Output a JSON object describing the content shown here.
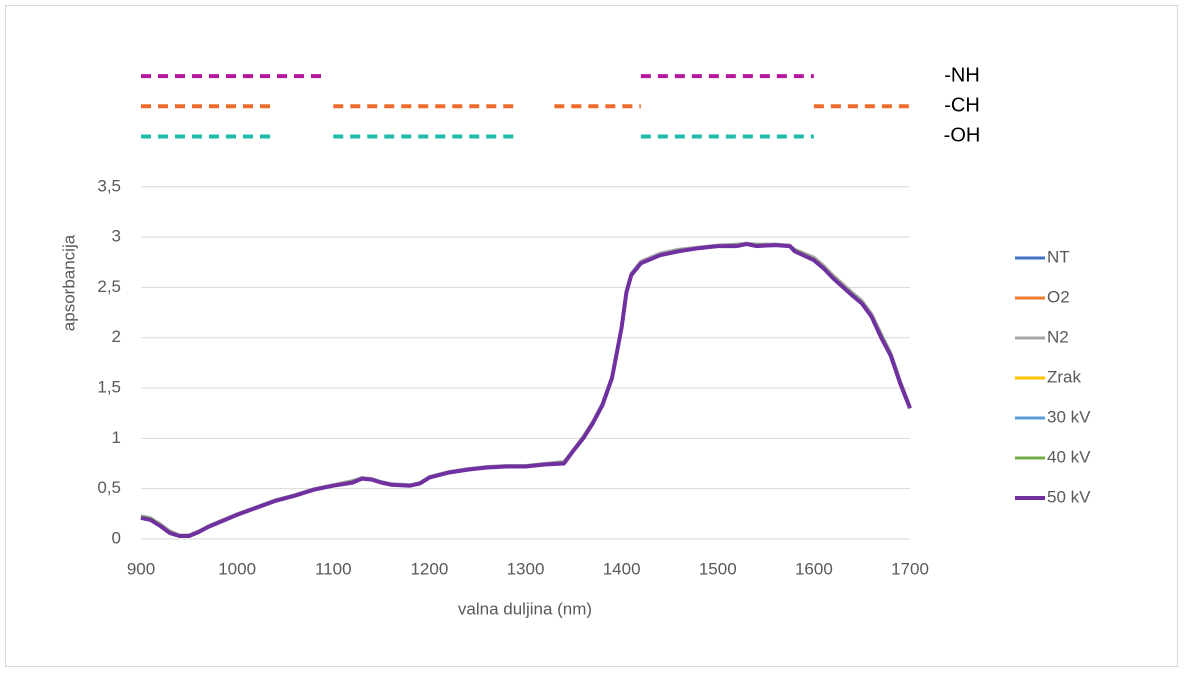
{
  "chart_data": {
    "type": "line",
    "xlabel": "valna duljina (nm)",
    "ylabel": "apsorbancija",
    "x": [
      900,
      910,
      920,
      930,
      940,
      950,
      960,
      970,
      980,
      1000,
      1020,
      1040,
      1060,
      1080,
      1100,
      1120,
      1130,
      1140,
      1150,
      1160,
      1180,
      1190,
      1200,
      1220,
      1240,
      1260,
      1280,
      1300,
      1320,
      1340,
      1350,
      1360,
      1370,
      1380,
      1390,
      1400,
      1405,
      1410,
      1420,
      1440,
      1460,
      1480,
      1500,
      1520,
      1530,
      1540,
      1560,
      1575,
      1580,
      1600,
      1610,
      1620,
      1640,
      1650,
      1660,
      1670,
      1680,
      1690,
      1700
    ],
    "series": [
      {
        "name": "NT",
        "color": "#4472c4",
        "values": [
          0.22,
          0.2,
          0.14,
          0.07,
          0.03,
          0.03,
          0.07,
          0.12,
          0.16,
          0.24,
          0.31,
          0.38,
          0.43,
          0.49,
          0.53,
          0.57,
          0.6,
          0.59,
          0.56,
          0.54,
          0.53,
          0.55,
          0.61,
          0.66,
          0.69,
          0.71,
          0.72,
          0.72,
          0.74,
          0.76,
          0.88,
          1.0,
          1.15,
          1.33,
          1.6,
          2.1,
          2.45,
          2.62,
          2.74,
          2.82,
          2.87,
          2.89,
          2.91,
          2.92,
          2.93,
          2.92,
          2.92,
          2.91,
          2.87,
          2.78,
          2.7,
          2.6,
          2.43,
          2.35,
          2.22,
          2.02,
          1.83,
          1.55,
          1.3
        ]
      },
      {
        "name": "O2",
        "color": "#ed7d31",
        "values": [
          0.22,
          0.2,
          0.14,
          0.07,
          0.03,
          0.03,
          0.07,
          0.12,
          0.16,
          0.24,
          0.31,
          0.38,
          0.43,
          0.49,
          0.53,
          0.57,
          0.6,
          0.59,
          0.56,
          0.54,
          0.53,
          0.55,
          0.61,
          0.66,
          0.69,
          0.71,
          0.72,
          0.72,
          0.74,
          0.76,
          0.88,
          1.0,
          1.15,
          1.33,
          1.6,
          2.1,
          2.45,
          2.62,
          2.74,
          2.82,
          2.87,
          2.89,
          2.91,
          2.92,
          2.93,
          2.92,
          2.92,
          2.91,
          2.87,
          2.78,
          2.7,
          2.6,
          2.43,
          2.35,
          2.22,
          2.02,
          1.83,
          1.55,
          1.3
        ]
      },
      {
        "name": "N2",
        "color": "#a5a5a5",
        "values": [
          0.23,
          0.21,
          0.15,
          0.08,
          0.04,
          0.04,
          0.08,
          0.13,
          0.17,
          0.25,
          0.32,
          0.39,
          0.44,
          0.5,
          0.54,
          0.58,
          0.61,
          0.6,
          0.57,
          0.55,
          0.54,
          0.56,
          0.62,
          0.67,
          0.7,
          0.72,
          0.73,
          0.73,
          0.75,
          0.77,
          0.89,
          1.02,
          1.17,
          1.35,
          1.62,
          2.12,
          2.47,
          2.64,
          2.76,
          2.84,
          2.88,
          2.9,
          2.92,
          2.93,
          2.94,
          2.93,
          2.93,
          2.92,
          2.88,
          2.8,
          2.72,
          2.62,
          2.45,
          2.37,
          2.24,
          2.04,
          1.85,
          1.57,
          1.32
        ]
      },
      {
        "name": "Zrak",
        "color": "#ffc000",
        "values": [
          0.22,
          0.2,
          0.14,
          0.07,
          0.03,
          0.03,
          0.07,
          0.12,
          0.16,
          0.24,
          0.31,
          0.38,
          0.43,
          0.49,
          0.53,
          0.57,
          0.6,
          0.59,
          0.56,
          0.54,
          0.53,
          0.55,
          0.61,
          0.66,
          0.69,
          0.71,
          0.72,
          0.72,
          0.74,
          0.76,
          0.88,
          1.0,
          1.15,
          1.33,
          1.6,
          2.1,
          2.45,
          2.62,
          2.74,
          2.82,
          2.87,
          2.89,
          2.91,
          2.92,
          2.93,
          2.92,
          2.92,
          2.91,
          2.87,
          2.78,
          2.7,
          2.6,
          2.43,
          2.35,
          2.22,
          2.02,
          1.83,
          1.55,
          1.3
        ]
      },
      {
        "name": "30 kV",
        "color": "#5b9bd5",
        "values": [
          0.22,
          0.2,
          0.14,
          0.07,
          0.03,
          0.03,
          0.07,
          0.12,
          0.16,
          0.24,
          0.31,
          0.38,
          0.43,
          0.49,
          0.53,
          0.57,
          0.6,
          0.59,
          0.56,
          0.54,
          0.53,
          0.55,
          0.61,
          0.66,
          0.69,
          0.71,
          0.72,
          0.72,
          0.74,
          0.76,
          0.88,
          1.0,
          1.15,
          1.33,
          1.6,
          2.1,
          2.45,
          2.62,
          2.74,
          2.82,
          2.87,
          2.89,
          2.91,
          2.92,
          2.93,
          2.92,
          2.92,
          2.91,
          2.87,
          2.78,
          2.7,
          2.6,
          2.43,
          2.35,
          2.22,
          2.02,
          1.83,
          1.55,
          1.3
        ]
      },
      {
        "name": "40 kV",
        "color": "#70ad47",
        "values": [
          0.22,
          0.2,
          0.14,
          0.07,
          0.03,
          0.03,
          0.07,
          0.12,
          0.16,
          0.24,
          0.31,
          0.38,
          0.43,
          0.49,
          0.53,
          0.57,
          0.6,
          0.59,
          0.56,
          0.54,
          0.53,
          0.55,
          0.61,
          0.66,
          0.69,
          0.71,
          0.72,
          0.72,
          0.74,
          0.76,
          0.88,
          1.0,
          1.15,
          1.33,
          1.6,
          2.1,
          2.45,
          2.62,
          2.74,
          2.82,
          2.87,
          2.89,
          2.91,
          2.92,
          2.93,
          2.92,
          2.92,
          2.91,
          2.87,
          2.78,
          2.7,
          2.6,
          2.43,
          2.35,
          2.22,
          2.02,
          1.83,
          1.55,
          1.3
        ]
      },
      {
        "name": "50 kV",
        "color": "#7030a0",
        "values": [
          0.21,
          0.19,
          0.13,
          0.06,
          0.03,
          0.03,
          0.07,
          0.12,
          0.16,
          0.24,
          0.31,
          0.38,
          0.43,
          0.49,
          0.53,
          0.56,
          0.6,
          0.59,
          0.56,
          0.54,
          0.53,
          0.55,
          0.61,
          0.66,
          0.69,
          0.71,
          0.72,
          0.72,
          0.74,
          0.75,
          0.88,
          1.0,
          1.15,
          1.33,
          1.6,
          2.1,
          2.45,
          2.62,
          2.74,
          2.82,
          2.86,
          2.89,
          2.91,
          2.91,
          2.93,
          2.91,
          2.92,
          2.91,
          2.86,
          2.77,
          2.69,
          2.59,
          2.42,
          2.34,
          2.21,
          2.0,
          1.82,
          1.54,
          1.3
        ]
      }
    ],
    "bands": [
      {
        "name": "-NH",
        "color": "#b3189f",
        "y": 4.6,
        "segments": [
          [
            900,
            1090
          ],
          [
            1420,
            1600
          ]
        ]
      },
      {
        "name": "-CH",
        "color": "#ed6b2b",
        "y": 4.3,
        "segments": [
          [
            900,
            1040
          ],
          [
            1100,
            1290
          ],
          [
            1330,
            1420
          ],
          [
            1600,
            1700
          ]
        ]
      },
      {
        "name": "-OH",
        "color": "#1fbcab",
        "y": 4.0,
        "segments": [
          [
            900,
            1040
          ],
          [
            1100,
            1290
          ],
          [
            1420,
            1600
          ]
        ]
      }
    ],
    "xlim": [
      900,
      1700
    ],
    "xticks": [
      900,
      1000,
      1100,
      1200,
      1300,
      1400,
      1500,
      1600,
      1700
    ],
    "ylim": [
      0,
      4.7
    ],
    "yticks": [
      0,
      {
        "value": 0.5,
        "label": "0,5"
      },
      1,
      {
        "value": 1.5,
        "label": "1,5"
      },
      2,
      {
        "value": 2.5,
        "label": "2,5"
      },
      3,
      {
        "value": 3.5,
        "label": "3,5"
      }
    ],
    "grid": true,
    "legend": "right"
  }
}
